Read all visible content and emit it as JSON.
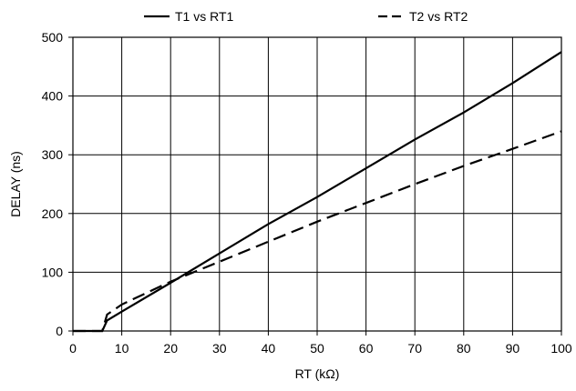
{
  "chart_data": {
    "type": "line",
    "xlabel": "RT (kΩ)",
    "ylabel": "DELAY (ns)",
    "xlim": [
      0,
      100
    ],
    "ylim": [
      0,
      500
    ],
    "x_ticks": [
      0,
      10,
      20,
      30,
      40,
      50,
      60,
      70,
      80,
      90,
      100
    ],
    "y_ticks": [
      0,
      100,
      200,
      300,
      400,
      500
    ],
    "grid": true,
    "legend_position": "top",
    "series": [
      {
        "name": "T1 vs RT1",
        "style": "solid",
        "color": "#000000",
        "points": [
          [
            0,
            0
          ],
          [
            6,
            0
          ],
          [
            7,
            18
          ],
          [
            10,
            33
          ],
          [
            20,
            82
          ],
          [
            30,
            132
          ],
          [
            40,
            182
          ],
          [
            50,
            228
          ],
          [
            60,
            277
          ],
          [
            70,
            326
          ],
          [
            80,
            372
          ],
          [
            90,
            422
          ],
          [
            100,
            475
          ]
        ]
      },
      {
        "name": "T2 vs RT2",
        "style": "dashed",
        "color": "#000000",
        "points": [
          [
            0,
            0
          ],
          [
            6,
            0
          ],
          [
            7,
            28
          ],
          [
            10,
            45
          ],
          [
            20,
            84
          ],
          [
            30,
            118
          ],
          [
            40,
            152
          ],
          [
            50,
            186
          ],
          [
            60,
            218
          ],
          [
            70,
            250
          ],
          [
            80,
            281
          ],
          [
            90,
            310
          ],
          [
            100,
            340
          ]
        ]
      }
    ]
  }
}
